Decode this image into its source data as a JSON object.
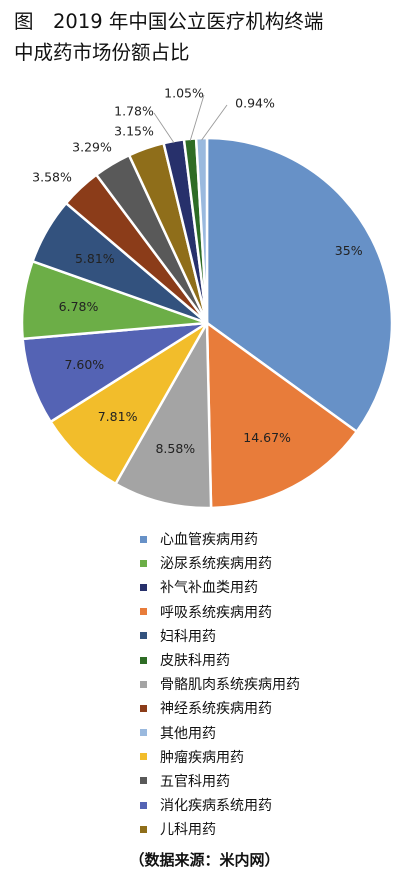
{
  "title_line1": "图　2019 年中国公立医疗机构终端",
  "title_line2": "中成药市场份额占比",
  "source": "（数据来源：米内网）",
  "chart_data": {
    "type": "pie",
    "title": "图　2019 年中国公立医疗机构终端中成药市场份额占比",
    "unit": "%",
    "slices": [
      {
        "name": "心血管疾病用药",
        "value": 35,
        "label": "35%",
        "color": "#6791c7"
      },
      {
        "name": "呼吸系统疾病用药",
        "value": 14.67,
        "label": "14.67%",
        "color": "#e87c3a"
      },
      {
        "name": "骨骼肌肉系统疾病用药",
        "value": 8.58,
        "label": "8.58%",
        "color": "#a4a4a4"
      },
      {
        "name": "肿瘤疾病用药",
        "value": 7.81,
        "label": "7.81%",
        "color": "#f2bd2b"
      },
      {
        "name": "消化疾病系统用药",
        "value": 7.6,
        "label": "7.60%",
        "color": "#5463b4"
      },
      {
        "name": "泌尿系统疾病用药",
        "value": 6.78,
        "label": "6.78%",
        "color": "#6cae47"
      },
      {
        "name": "妇科用药",
        "value": 5.81,
        "label": "5.81%",
        "color": "#33527e"
      },
      {
        "name": "神经系统疾病用药",
        "value": 3.58,
        "label": "3.58%",
        "color": "#8b3c19"
      },
      {
        "name": "五官科用药",
        "value": 3.29,
        "label": "3.29%",
        "color": "#595959"
      },
      {
        "name": "儿科用药",
        "value": 3.15,
        "label": "3.15%",
        "color": "#8f6e1a"
      },
      {
        "name": "补气补血类用药",
        "value": 1.78,
        "label": "1.78%",
        "color": "#27306b"
      },
      {
        "name": "皮肤科用药",
        "value": 1.05,
        "label": "1.05%",
        "color": "#2e6c25"
      },
      {
        "name": "其他用药",
        "value": 0.94,
        "label": "0.94%",
        "color": "#9ab9de"
      }
    ],
    "legend_order": [
      "心血管疾病用药",
      "泌尿系统疾病用药",
      "补气补血类用药",
      "呼吸系统疾病用药",
      "妇科用药",
      "皮肤科用药",
      "骨骼肌肉系统疾病用药",
      "神经系统疾病用药",
      "其他用药",
      "肿瘤疾病用药",
      "五官科用药",
      "消化疾病系统用药",
      "儿科用药"
    ],
    "legend_placement": "bottom"
  }
}
